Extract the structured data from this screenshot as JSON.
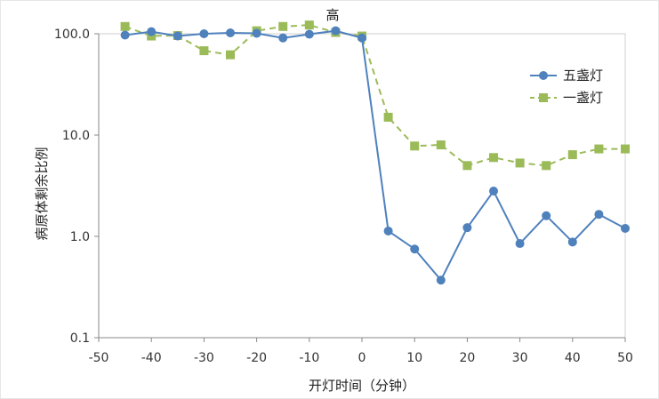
{
  "chart_data": {
    "type": "line",
    "title": "高",
    "xlabel": "开灯时间（分钟）",
    "ylabel": "病原体剩余比例",
    "yscale": "log",
    "xlim": [
      -50,
      50
    ],
    "ylim": [
      0.1,
      100
    ],
    "x_ticks": [
      -50,
      -40,
      -30,
      -20,
      -10,
      0,
      10,
      20,
      30,
      40,
      50
    ],
    "y_ticks": [
      0.1,
      1,
      10,
      100
    ],
    "y_tick_labels": [
      "0.1",
      "1.0",
      "10.0",
      "100.0"
    ],
    "legend_position": "top-right",
    "x": [
      -45,
      -40,
      -35,
      -30,
      -25,
      -20,
      -15,
      -10,
      -5,
      0,
      5,
      10,
      15,
      20,
      25,
      30,
      35,
      40,
      45,
      50
    ],
    "series": [
      {
        "name": "五盏灯",
        "color": "#4f81bd",
        "marker": "circle",
        "line": "solid",
        "values": [
          97,
          105,
          95,
          100,
          102,
          101,
          91,
          99,
          107,
          91,
          1.13,
          0.75,
          0.37,
          1.22,
          2.8,
          0.85,
          1.6,
          0.88,
          1.65,
          1.2
        ]
      },
      {
        "name": "一盏灯",
        "color": "#9bbb59",
        "marker": "square",
        "line": "dashed",
        "values": [
          118,
          95,
          96,
          68,
          62,
          107,
          118,
          122,
          103,
          95,
          15,
          7.8,
          8.0,
          5.0,
          6.0,
          5.3,
          5.0,
          6.4,
          7.3,
          7.3
        ]
      }
    ]
  }
}
